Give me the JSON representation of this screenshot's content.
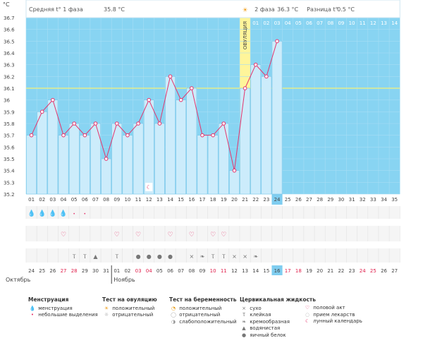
{
  "header": {
    "unit": "°C",
    "phase1_label": "Средняя t° 1 фаза",
    "phase1_value": "35.8 °C",
    "phase2_label": "2 фаза",
    "phase2_value": "36.3 °C",
    "diff_label": "Разница t°",
    "diff_value": "0.5 °C"
  },
  "ovulation": {
    "label": "ОВУЛЯЦИЯ",
    "day": 21
  },
  "phase2_days": [
    "01",
    "02",
    "03",
    "04",
    "05",
    "06",
    "07",
    "08",
    "09",
    "10",
    "11",
    "12",
    "13",
    "14"
  ],
  "days": [
    "01",
    "02",
    "03",
    "04",
    "05",
    "06",
    "07",
    "08",
    "09",
    "10",
    "11",
    "12",
    "13",
    "14",
    "15",
    "16",
    "17",
    "18",
    "19",
    "20",
    "21",
    "22",
    "23",
    "24",
    "25",
    "26",
    "27",
    "28",
    "29",
    "30",
    "31",
    "32",
    "33",
    "34",
    "35"
  ],
  "current_day": "24",
  "dates": [
    {
      "d": "24",
      "red": false
    },
    {
      "d": "25",
      "red": false
    },
    {
      "d": "26",
      "red": false
    },
    {
      "d": "27",
      "red": true
    },
    {
      "d": "28",
      "red": true
    },
    {
      "d": "29",
      "red": false
    },
    {
      "d": "30",
      "red": false
    },
    {
      "d": "31",
      "red": false
    },
    {
      "d": "01",
      "red": false
    },
    {
      "d": "02",
      "red": false
    },
    {
      "d": "03",
      "red": true
    },
    {
      "d": "04",
      "red": true
    },
    {
      "d": "05",
      "red": false
    },
    {
      "d": "06",
      "red": false
    },
    {
      "d": "07",
      "red": false
    },
    {
      "d": "08",
      "red": false
    },
    {
      "d": "09",
      "red": false
    },
    {
      "d": "10",
      "red": true
    },
    {
      "d": "11",
      "red": true
    },
    {
      "d": "12",
      "red": false
    },
    {
      "d": "13",
      "red": false
    },
    {
      "d": "14",
      "red": false
    },
    {
      "d": "15",
      "red": false
    },
    {
      "d": "16",
      "red": false
    },
    {
      "d": "17",
      "red": true
    },
    {
      "d": "18",
      "red": true
    },
    {
      "d": "19",
      "red": false
    },
    {
      "d": "20",
      "red": false
    },
    {
      "d": "21",
      "red": false
    },
    {
      "d": "22",
      "red": false
    },
    {
      "d": "23",
      "red": false
    },
    {
      "d": "24",
      "red": true
    },
    {
      "d": "25",
      "red": true
    },
    {
      "d": "26",
      "red": false
    },
    {
      "d": "27",
      "red": false
    }
  ],
  "months": {
    "first": "Октябрь",
    "second": "Ноябрь"
  },
  "menstruation_days": [
    {
      "day": 1,
      "heavy": true
    },
    {
      "day": 2,
      "heavy": true
    },
    {
      "day": 3,
      "heavy": true
    },
    {
      "day": 4,
      "heavy": true
    },
    {
      "day": 5,
      "heavy": false
    },
    {
      "day": 6,
      "heavy": false
    }
  ],
  "intercourse_days": [
    4,
    9,
    11,
    14,
    16,
    18,
    19
  ],
  "fluid_marks": [
    {
      "day": 5,
      "sym": "Ⲧ"
    },
    {
      "day": 6,
      "sym": "Ⲧ"
    },
    {
      "day": 7,
      "sym": "▲"
    },
    {
      "day": 9,
      "sym": "Ⲧ"
    },
    {
      "day": 11,
      "sym": "●"
    },
    {
      "day": 12,
      "sym": "●"
    },
    {
      "day": 13,
      "sym": "●"
    },
    {
      "day": 14,
      "sym": "●"
    },
    {
      "day": 16,
      "sym": "×"
    },
    {
      "day": 17,
      "sym": "❧"
    },
    {
      "day": 18,
      "sym": "Ⲧ"
    },
    {
      "day": 19,
      "sym": "Ⲧ"
    },
    {
      "day": 20,
      "sym": "×"
    },
    {
      "day": 21,
      "sym": "×"
    },
    {
      "day": 22,
      "sym": "❧"
    }
  ],
  "moon_day": 12,
  "legend": {
    "menstruation": {
      "title": "Менструация",
      "items": [
        {
          "icon": "💧",
          "label": "менструация"
        },
        {
          "icon": "•",
          "label": "небольшие выделения"
        }
      ]
    },
    "ovulation_test": {
      "title": "Тест на овуляцию",
      "items": [
        {
          "icon": "☀",
          "label": "положительный"
        },
        {
          "icon": "☼",
          "label": "отрицательный"
        }
      ]
    },
    "pregnancy_test": {
      "title": "Тест на беременность",
      "items": [
        {
          "icon": "◔",
          "label": "положительный"
        },
        {
          "icon": "◯",
          "label": "отрицательный"
        },
        {
          "icon": "◑",
          "label": "слабоположительный"
        }
      ]
    },
    "cervical": {
      "title": "Цервикальная жидкость",
      "items": [
        {
          "icon": "×",
          "label": "сухо"
        },
        {
          "icon": "Ⲧ",
          "label": "клейкая"
        },
        {
          "icon": "❧",
          "label": "кремообразная"
        },
        {
          "icon": "▲",
          "label": "водянистая"
        },
        {
          "icon": "●",
          "label": "яичный белок"
        }
      ]
    },
    "other": {
      "items": [
        {
          "icon": "♡",
          "label": "половой акт"
        },
        {
          "icon": "◌",
          "label": "прием лекарств"
        },
        {
          "icon": "☾",
          "label": "лунный календарь"
        }
      ]
    }
  },
  "colors": {
    "chart_bg": "#88d4f2",
    "bar_fill": "#ccecfb",
    "bar_stroke": "#6cc1e6",
    "line": "#e4346c",
    "ovulation_band": "#fff59a",
    "current_day_bg": "#7fcdf0",
    "red_text": "#e0204c"
  },
  "chart_data": {
    "type": "line",
    "x": [
      1,
      2,
      3,
      4,
      5,
      6,
      7,
      8,
      9,
      10,
      11,
      12,
      13,
      14,
      15,
      16,
      17,
      18,
      19,
      20,
      21,
      22,
      23,
      24
    ],
    "series": [
      {
        "values": [
          35.7,
          35.9,
          36.0,
          35.7,
          35.8,
          35.7,
          35.8,
          35.5,
          35.8,
          35.7,
          35.8,
          36.0,
          35.8,
          36.2,
          36.0,
          36.1,
          35.7,
          35.7,
          35.8,
          35.4,
          36.1,
          36.3,
          36.2,
          36.5
        ]
      }
    ],
    "ylabel": "°C",
    "ylim": [
      35.2,
      36.7
    ],
    "yticks": [
      "35.2",
      "35.3",
      "35.4",
      "35.5",
      "35.6",
      "35.7",
      "35.8",
      "35.9",
      "36",
      "36.1",
      "36.2",
      "36.3",
      "36.4",
      "36.5",
      "36.6",
      "36.7"
    ],
    "coverline": 36.1
  }
}
